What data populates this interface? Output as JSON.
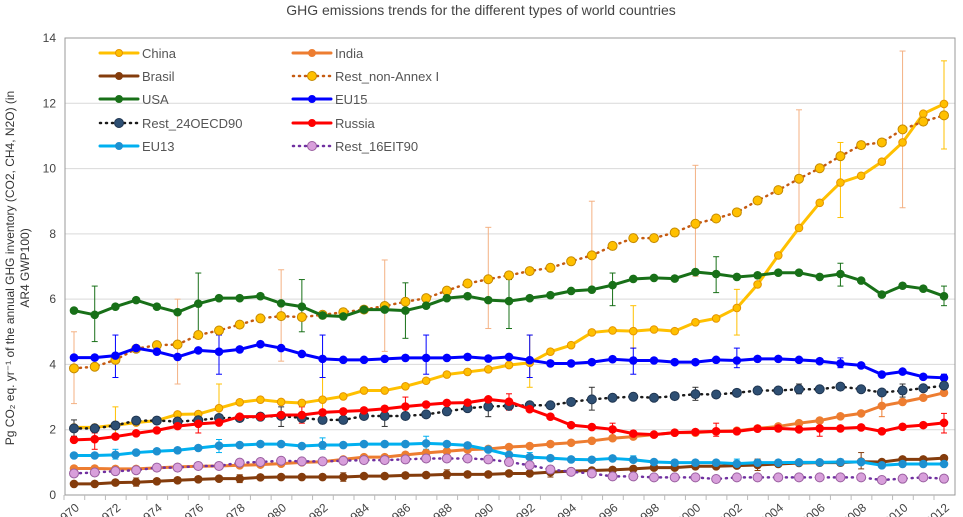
{
  "chart_data": {
    "type": "line",
    "title": "GHG emissions trends for the different types of world countries",
    "ylabel": "Pg CO2 eq. yr−1 of the annual GHG inventory (CO2, CH4, N2O) (in AR4 GWP100)",
    "ylabel_lines": [
      "Pg CO₂ eq. yr⁻¹ of the annual GHG inventory (CO2, CH4, N2O) (in",
      "AR4 GWP100)"
    ],
    "xlabel": "",
    "x": [
      1970,
      1971,
      1972,
      1973,
      1974,
      1975,
      1976,
      1977,
      1978,
      1979,
      1980,
      1981,
      1982,
      1983,
      1984,
      1985,
      1986,
      1987,
      1988,
      1989,
      1990,
      1991,
      1992,
      1993,
      1994,
      1995,
      1996,
      1997,
      1998,
      1999,
      2000,
      2001,
      2002,
      2003,
      2004,
      2005,
      2006,
      2007,
      2008,
      2009,
      2010,
      2011,
      2012
    ],
    "x_ticks": [
      "1970",
      "1972",
      "1974",
      "1976",
      "1978",
      "1980",
      "1982",
      "1984",
      "1986",
      "1988",
      "1990",
      "1992",
      "1994",
      "1996",
      "1998",
      "2000",
      "2002",
      "2004",
      "2006",
      "2008",
      "2010",
      "2012"
    ],
    "y_ticks": [
      "0",
      "2",
      "4",
      "6",
      "8",
      "10",
      "12",
      "14"
    ],
    "xlim": [
      1970,
      2012
    ],
    "ylim": [
      0,
      14
    ],
    "grid": "horizontal",
    "legend": "top-left",
    "series": [
      {
        "name": "China",
        "color": "#FFC000",
        "marker": "#FFC000",
        "marker_edge": "#E59400",
        "dotted": false,
        "values": [
          2.07,
          2.07,
          2.14,
          2.22,
          2.28,
          2.47,
          2.48,
          2.66,
          2.84,
          2.92,
          2.85,
          2.82,
          2.92,
          3.02,
          3.2,
          3.2,
          3.33,
          3.5,
          3.69,
          3.77,
          3.85,
          3.98,
          4.05,
          4.39,
          4.59,
          4.98,
          5.04,
          5.02,
          5.07,
          5.02,
          5.29,
          5.41,
          5.73,
          6.45,
          7.34,
          8.18,
          8.95,
          9.57,
          9.78,
          10.21,
          10.8,
          11.68,
          11.98
        ],
        "errors": [
          [
            1972,
            1.7,
            2.7
          ],
          [
            1977,
            2.2,
            3.4
          ],
          [
            1982,
            2.5,
            3.6
          ],
          [
            1992,
            3.3,
            4.9
          ],
          [
            1997,
            4.5,
            5.8
          ],
          [
            2002,
            4.9,
            6.3
          ],
          [
            2007,
            8.5,
            10.8
          ],
          [
            2012,
            10.6,
            13.3
          ]
        ]
      },
      {
        "name": "India",
        "color": "#ED7D31",
        "marker": "#ED7D31",
        "marker_edge": "#ED7D31",
        "dotted": false,
        "values": [
          0.81,
          0.81,
          0.8,
          0.8,
          0.83,
          0.86,
          0.88,
          0.89,
          0.91,
          0.93,
          0.96,
          1.0,
          1.02,
          1.09,
          1.16,
          1.16,
          1.23,
          1.29,
          1.34,
          1.39,
          1.41,
          1.47,
          1.5,
          1.56,
          1.6,
          1.66,
          1.74,
          1.79,
          1.85,
          1.91,
          1.91,
          1.95,
          1.97,
          2.04,
          2.1,
          2.2,
          2.28,
          2.41,
          2.5,
          2.73,
          2.85,
          2.98,
          3.13
        ],
        "errors": [
          [
            1989,
            1.2,
            1.6
          ],
          [
            2009,
            2.4,
            3.1
          ]
        ]
      },
      {
        "name": "Brasil",
        "color": "#843C0C",
        "marker": "#843C0C",
        "marker_edge": "#843C0C",
        "dotted": false,
        "values": [
          0.34,
          0.34,
          0.38,
          0.39,
          0.42,
          0.45,
          0.48,
          0.5,
          0.5,
          0.54,
          0.55,
          0.55,
          0.55,
          0.55,
          0.58,
          0.58,
          0.6,
          0.61,
          0.63,
          0.63,
          0.63,
          0.66,
          0.66,
          0.7,
          0.73,
          0.75,
          0.77,
          0.8,
          0.84,
          0.84,
          0.88,
          0.88,
          0.9,
          0.92,
          0.95,
          0.98,
          0.99,
          0.99,
          1.02,
          1.01,
          1.09,
          1.09,
          1.13
        ],
        "errors": [
          [
            1973,
            0.27,
            0.52
          ],
          [
            1978,
            0.38,
            0.62
          ],
          [
            1983,
            0.42,
            0.68
          ],
          [
            1988,
            0.5,
            0.77
          ],
          [
            1993,
            0.55,
            0.85
          ],
          [
            2003,
            0.75,
            1.1
          ],
          [
            2008,
            0.8,
            1.3
          ]
        ]
      },
      {
        "name": "Rest_non-Annex I",
        "color": "#C55A11",
        "marker": "#FFC000",
        "marker_edge": "#C58A00",
        "dotted": true,
        "values": [
          3.88,
          3.93,
          4.14,
          4.48,
          4.59,
          4.61,
          4.9,
          5.04,
          5.22,
          5.41,
          5.48,
          5.45,
          5.52,
          5.6,
          5.68,
          5.79,
          5.92,
          6.03,
          6.26,
          6.48,
          6.61,
          6.73,
          6.86,
          6.96,
          7.16,
          7.34,
          7.63,
          7.87,
          7.87,
          8.04,
          8.31,
          8.47,
          8.66,
          9.02,
          9.34,
          9.69,
          10.01,
          10.38,
          10.72,
          10.8,
          11.2,
          11.44,
          11.63
        ],
        "errors": [
          [
            1970,
            2.8,
            5.0
          ],
          [
            1975,
            3.4,
            6.0
          ],
          [
            1980,
            4.1,
            6.9
          ],
          [
            1985,
            4.4,
            7.2
          ],
          [
            1990,
            5.1,
            8.2
          ],
          [
            1995,
            6.2,
            9.0
          ],
          [
            2000,
            6.7,
            10.1
          ],
          [
            2005,
            8.2,
            11.8
          ],
          [
            2010,
            8.8,
            13.6
          ]
        ]
      },
      {
        "name": "USA",
        "color": "#187018",
        "marker": "#187018",
        "marker_edge": "#187018",
        "dotted": false,
        "values": [
          5.65,
          5.52,
          5.77,
          5.97,
          5.77,
          5.6,
          5.86,
          6.03,
          6.03,
          6.09,
          5.87,
          5.77,
          5.5,
          5.47,
          5.68,
          5.68,
          5.65,
          5.8,
          6.03,
          6.09,
          5.97,
          5.94,
          6.03,
          6.12,
          6.25,
          6.29,
          6.43,
          6.62,
          6.65,
          6.63,
          6.83,
          6.77,
          6.68,
          6.73,
          6.81,
          6.81,
          6.68,
          6.77,
          6.57,
          6.14,
          6.41,
          6.32,
          6.09
        ],
        "errors": [
          [
            1971,
            4.7,
            6.4
          ],
          [
            1976,
            4.8,
            6.8
          ],
          [
            1981,
            5.0,
            6.6
          ],
          [
            1986,
            4.8,
            6.5
          ],
          [
            1991,
            5.1,
            6.6
          ],
          [
            1996,
            5.8,
            6.8
          ],
          [
            2001,
            6.2,
            7.3
          ],
          [
            2007,
            6.4,
            7.1
          ],
          [
            2012,
            5.8,
            6.4
          ]
        ]
      },
      {
        "name": "EU15",
        "color": "#0000FF",
        "marker": "#0000FF",
        "marker_edge": "#0000FF",
        "dotted": false,
        "values": [
          4.21,
          4.21,
          4.27,
          4.5,
          4.39,
          4.23,
          4.43,
          4.39,
          4.46,
          4.62,
          4.5,
          4.32,
          4.17,
          4.14,
          4.14,
          4.17,
          4.2,
          4.2,
          4.2,
          4.23,
          4.18,
          4.23,
          4.13,
          4.03,
          4.03,
          4.07,
          4.16,
          4.12,
          4.12,
          4.07,
          4.07,
          4.14,
          4.12,
          4.17,
          4.17,
          4.14,
          4.1,
          4.03,
          3.97,
          3.69,
          3.78,
          3.62,
          3.59
        ],
        "errors": [
          [
            1972,
            3.6,
            4.9
          ],
          [
            1977,
            3.7,
            4.9
          ],
          [
            1982,
            3.6,
            4.9
          ],
          [
            1987,
            3.7,
            4.9
          ],
          [
            1992,
            3.6,
            4.9
          ],
          [
            1997,
            3.7,
            4.5
          ],
          [
            2002,
            3.9,
            4.5
          ],
          [
            2007,
            3.9,
            4.2
          ],
          [
            2012,
            3.4,
            3.7
          ]
        ]
      },
      {
        "name": "Rest_24OECD90",
        "color": "#1A1A1A",
        "marker": "#2E4F73",
        "marker_edge": "#1F3550",
        "dotted": true,
        "values": [
          2.04,
          2.04,
          2.13,
          2.28,
          2.28,
          2.25,
          2.29,
          2.36,
          2.36,
          2.4,
          2.42,
          2.36,
          2.3,
          2.3,
          2.42,
          2.42,
          2.42,
          2.47,
          2.56,
          2.66,
          2.71,
          2.73,
          2.75,
          2.75,
          2.85,
          2.93,
          2.98,
          3.01,
          2.98,
          3.03,
          3.09,
          3.08,
          3.13,
          3.2,
          3.2,
          3.24,
          3.24,
          3.32,
          3.24,
          3.14,
          3.2,
          3.27,
          3.35
        ],
        "errors": [
          [
            1970,
            1.8,
            2.3
          ],
          [
            1975,
            2.1,
            2.5
          ],
          [
            1980,
            2.1,
            2.7
          ],
          [
            1985,
            2.1,
            2.7
          ],
          [
            1990,
            2.4,
            3.0
          ],
          [
            1995,
            2.6,
            3.3
          ],
          [
            2000,
            2.9,
            3.3
          ],
          [
            2005,
            3.1,
            3.4
          ],
          [
            2010,
            3.0,
            3.4
          ]
        ]
      },
      {
        "name": "Russia",
        "color": "#FF0000",
        "marker": "#FF0000",
        "marker_edge": "#FF0000",
        "dotted": false,
        "values": [
          1.69,
          1.71,
          1.79,
          1.89,
          1.98,
          2.11,
          2.18,
          2.22,
          2.4,
          2.4,
          2.45,
          2.45,
          2.53,
          2.56,
          2.59,
          2.64,
          2.71,
          2.77,
          2.82,
          2.83,
          2.93,
          2.86,
          2.63,
          2.4,
          2.14,
          2.08,
          2.01,
          1.88,
          1.85,
          1.91,
          1.93,
          1.95,
          1.95,
          2.03,
          2.04,
          2.01,
          2.04,
          2.04,
          2.07,
          1.95,
          2.09,
          2.14,
          2.21
        ],
        "errors": [
          [
            1971,
            1.4,
            1.9
          ],
          [
            1976,
            1.9,
            2.4
          ],
          [
            1981,
            2.2,
            2.7
          ],
          [
            1986,
            2.5,
            3.0
          ],
          [
            1991,
            2.6,
            3.1
          ],
          [
            1996,
            1.8,
            2.2
          ],
          [
            2001,
            1.8,
            2.2
          ],
          [
            2006,
            1.8,
            2.3
          ],
          [
            2012,
            1.9,
            2.5
          ]
        ]
      },
      {
        "name": "EU13",
        "color": "#00B0F0",
        "marker": "#1E90D0",
        "marker_edge": "#1E90D0",
        "dotted": false,
        "values": [
          1.21,
          1.21,
          1.23,
          1.3,
          1.34,
          1.37,
          1.44,
          1.51,
          1.53,
          1.56,
          1.56,
          1.5,
          1.53,
          1.53,
          1.56,
          1.56,
          1.56,
          1.58,
          1.56,
          1.52,
          1.39,
          1.23,
          1.16,
          1.13,
          1.09,
          1.08,
          1.12,
          1.08,
          1.01,
          0.99,
          0.99,
          0.99,
          0.96,
          0.99,
          0.99,
          1.0,
          1.0,
          1.01,
          1.01,
          0.91,
          0.95,
          0.95,
          0.95
        ],
        "errors": [
          [
            1972,
            1.1,
            1.4
          ],
          [
            1977,
            1.3,
            1.7
          ],
          [
            1982,
            1.4,
            1.75
          ],
          [
            1987,
            1.4,
            1.8
          ],
          [
            1992,
            1.0,
            1.3
          ],
          [
            1997,
            1.0,
            1.2
          ],
          [
            2002,
            0.9,
            1.1
          ],
          [
            2007,
            0.9,
            1.1
          ],
          [
            2012,
            0.9,
            1.05
          ]
        ]
      },
      {
        "name": "Rest_16EIT90",
        "color": "#7030A0",
        "marker": "#D89FDB",
        "marker_edge": "#9A5FA0",
        "dotted": true,
        "values": [
          0.66,
          0.69,
          0.73,
          0.76,
          0.84,
          0.84,
          0.89,
          0.89,
          0.99,
          1.01,
          1.05,
          1.03,
          1.03,
          1.05,
          1.07,
          1.07,
          1.09,
          1.12,
          1.12,
          1.12,
          1.09,
          1.01,
          0.91,
          0.78,
          0.71,
          0.66,
          0.57,
          0.57,
          0.54,
          0.54,
          0.54,
          0.49,
          0.54,
          0.54,
          0.54,
          0.54,
          0.54,
          0.54,
          0.54,
          0.46,
          0.5,
          0.54,
          0.5
        ],
        "errors": []
      }
    ]
  }
}
